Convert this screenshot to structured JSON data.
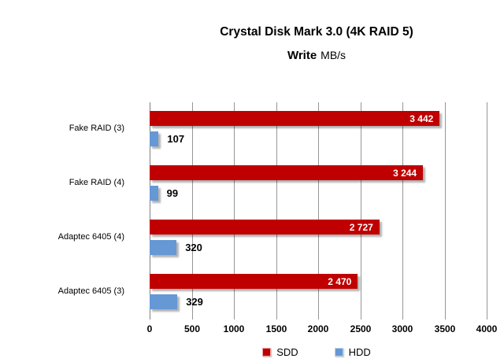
{
  "title": "Crystal Disk Mark 3.0 (4K RAID 5)",
  "subtitle": {
    "bold": "Write",
    "unit": "MB/s"
  },
  "chart_data": {
    "type": "bar",
    "orientation": "horizontal",
    "title": "Crystal Disk Mark 3.0 (4K RAID 5)",
    "subtitle": "Write MB/s",
    "categories": [
      "Fake RAID (3)",
      "Fake RAID (4)",
      "Adaptec 6405 (4)",
      "Adaptec 6405 (3)"
    ],
    "series": [
      {
        "name": "SDD",
        "color": "#C00000",
        "values": [
          3442,
          3244,
          2727,
          2470
        ],
        "value_labels": [
          "3 442",
          "3 244",
          "2 727",
          "2 470"
        ],
        "label_placement": "inside-end",
        "label_color": "#FFFFFF"
      },
      {
        "name": "HDD",
        "color": "#6598D4",
        "values": [
          107,
          99,
          320,
          329
        ],
        "value_labels": [
          "107",
          "99",
          "320",
          "329"
        ],
        "label_placement": "outside-end",
        "label_color": "#000000"
      }
    ],
    "xlabel": "",
    "ylabel": "",
    "xlim": [
      0,
      4000
    ],
    "xticks": [
      0,
      500,
      1000,
      1500,
      2000,
      2500,
      3000,
      3500,
      4000
    ],
    "grid": "vertical-only",
    "legend_position": "bottom-center",
    "legend": [
      {
        "label": "SDD",
        "color": "#C00000",
        "border": "#E8A3A3"
      },
      {
        "label": "HDD",
        "color": "#6598D4",
        "border": "#BCD4EC"
      }
    ]
  },
  "colors": {
    "bar_sdd": "#C00000",
    "bar_hdd": "#6598D4",
    "gridline": "#969696",
    "axis_line": "#7F7F7F",
    "background": "#FFFFFF",
    "text": "#000000"
  }
}
